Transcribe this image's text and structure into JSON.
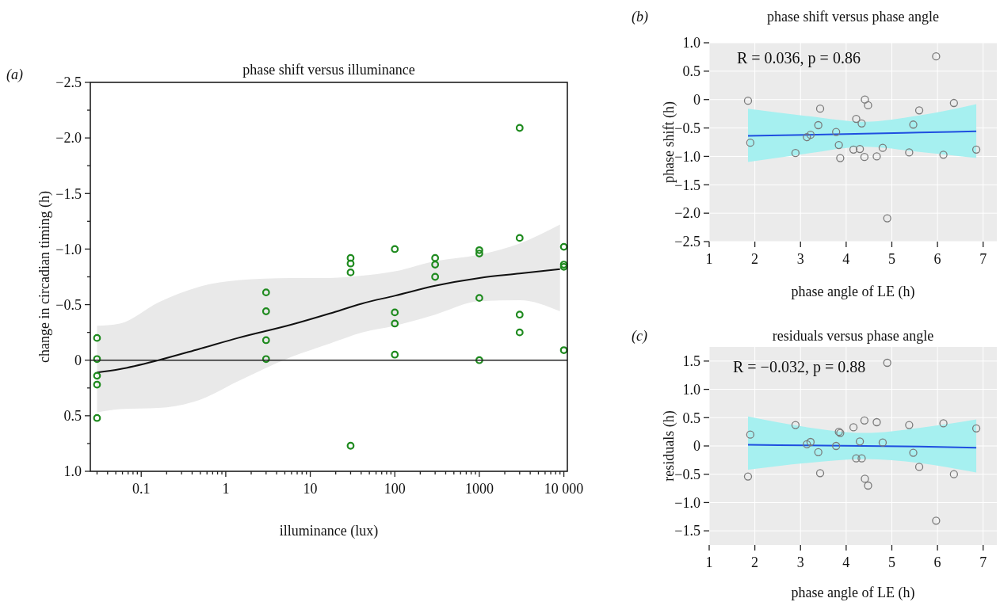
{
  "chart_data": [
    {
      "type": "scatter",
      "title": "phase shift versus illuminance",
      "xlabel": "illuminance (lux)",
      "ylabel": "change in circadian timing (h)",
      "annotations": [
        "(a)"
      ],
      "log": "x",
      "xlim": [
        0.025,
        11000
      ],
      "ylim": [
        1.0,
        -2.5
      ],
      "xticks": [
        {
          "value": 0.03,
          "label": null
        },
        {
          "value": 0.04,
          "label": null
        },
        {
          "value": 0.05,
          "label": null
        },
        {
          "value": 0.06,
          "label": null
        },
        {
          "value": 0.07,
          "label": null
        },
        {
          "value": 0.08,
          "label": null
        },
        {
          "value": 0.09,
          "label": null
        },
        0.1,
        {
          "value": 0.2,
          "label": null
        },
        {
          "value": 0.3,
          "label": null
        },
        {
          "value": 0.4,
          "label": null
        },
        {
          "value": 0.5,
          "label": null
        },
        {
          "value": 0.6,
          "label": null
        },
        {
          "value": 0.7,
          "label": null
        },
        {
          "value": 0.8,
          "label": null
        },
        {
          "value": 0.9,
          "label": null
        },
        1,
        {
          "value": 2,
          "label": null
        },
        {
          "value": 3,
          "label": null
        },
        {
          "value": 4,
          "label": null
        },
        {
          "value": 5,
          "label": null
        },
        {
          "value": 6,
          "label": null
        },
        {
          "value": 7,
          "label": null
        },
        {
          "value": 8,
          "label": null
        },
        {
          "value": 9,
          "label": null
        },
        10,
        {
          "value": 20,
          "label": null
        },
        {
          "value": 30,
          "label": null
        },
        {
          "value": 40,
          "label": null
        },
        {
          "value": 50,
          "label": null
        },
        {
          "value": 60,
          "label": null
        },
        {
          "value": 70,
          "label": null
        },
        {
          "value": 80,
          "label": null
        },
        {
          "value": 90,
          "label": null
        },
        100,
        {
          "value": 200,
          "label": null
        },
        {
          "value": 300,
          "label": null
        },
        {
          "value": 400,
          "label": null
        },
        {
          "value": 500,
          "label": null
        },
        {
          "value": 600,
          "label": null
        },
        {
          "value": 700,
          "label": null
        },
        {
          "value": 800,
          "label": null
        },
        {
          "value": 900,
          "label": null
        },
        1000,
        {
          "value": 2000,
          "label": null
        },
        {
          "value": 3000,
          "label": null
        },
        {
          "value": 4000,
          "label": null
        },
        {
          "value": 5000,
          "label": null
        },
        {
          "value": 6000,
          "label": null
        },
        {
          "value": 7000,
          "label": null
        },
        {
          "value": 8000,
          "label": null
        },
        {
          "value": 9000,
          "label": null
        },
        {
          "value": 10000,
          "label": "10 000"
        }
      ],
      "yticks": [
        {
          "value": -2.5,
          "label": "−2.5"
        },
        {
          "value": -2.25,
          "label": null
        },
        {
          "value": -2.0,
          "label": "−2.0"
        },
        {
          "value": -1.75,
          "label": null
        },
        {
          "value": -1.5,
          "label": "−1.5"
        },
        {
          "value": -1.25,
          "label": null
        },
        {
          "value": -1.0,
          "label": "−1.0"
        },
        {
          "value": -0.75,
          "label": null
        },
        {
          "value": -0.5,
          "label": "−0.5"
        },
        {
          "value": -0.25,
          "label": null
        },
        0,
        {
          "value": 0.25,
          "label": null
        },
        0.5,
        {
          "value": 0.75,
          "label": null
        },
        {
          "value": 1.0,
          "label": "1.0"
        }
      ],
      "ref_lines": [
        {
          "axis": "y",
          "value": 0,
          "color": "#222222"
        }
      ],
      "series": [
        {
          "marker": "circle",
          "color": "#1e8a1e",
          "x": [
            0.03,
            0.03,
            0.03,
            0.03,
            0.03,
            3,
            3,
            3,
            3,
            30,
            30,
            30,
            30,
            100,
            100,
            100,
            100,
            300,
            300,
            300,
            1000,
            1000,
            1000,
            1000,
            3000,
            3000,
            3000,
            3000,
            10000,
            10000,
            10000,
            10000
          ],
          "values": [
            -0.2,
            -0.01,
            0.14,
            0.22,
            0.52,
            -0.61,
            -0.44,
            -0.18,
            -0.01,
            -0.92,
            -0.87,
            -0.79,
            0.77,
            -1.0,
            -0.43,
            -0.33,
            -0.05,
            -0.92,
            -0.86,
            -0.75,
            -0.99,
            -0.96,
            -0.56,
            0,
            -2.09,
            -1.1,
            -0.41,
            -0.25,
            -1.02,
            -0.86,
            -0.84,
            -0.09
          ]
        },
        {
          "type": "line",
          "color": "#111111",
          "x": [
            0.03,
            0.056,
            0.16,
            0.48,
            1.4,
            6,
            17,
            41,
            100,
            300,
            1000,
            3000,
            9000
          ],
          "values": [
            0.11,
            0.08,
            0,
            -0.1,
            -0.2,
            -0.32,
            -0.42,
            -0.51,
            -0.58,
            -0.67,
            -0.74,
            -0.78,
            -0.82
          ],
          "lower": [
            -0.31,
            -0.33,
            -0.52,
            -0.66,
            -0.72,
            -0.74,
            -0.74,
            -0.76,
            -0.8,
            -0.89,
            -0.95,
            -1.05,
            -1.22
          ],
          "upper": [
            0.47,
            0.44,
            0.43,
            0.36,
            0.19,
            -0.03,
            -0.15,
            -0.25,
            -0.31,
            -0.41,
            -0.53,
            -0.54,
            -0.44
          ]
        }
      ]
    },
    {
      "type": "scatter",
      "title": "phase shift versus phase angle",
      "xlabel": "phase angle of LE (h)",
      "ylabel": "phase shift (h)",
      "annotations": [
        "(b)",
        "R = 0.036, p = 0.86"
      ],
      "grid": true,
      "xlim": [
        1,
        7.3
      ],
      "ylim": [
        -2.5,
        1.0
      ],
      "xticks": [
        1,
        2,
        3,
        4,
        5,
        6,
        7
      ],
      "yticks": [
        {
          "value": -2.5,
          "label": "−2.5"
        },
        {
          "value": -2.0,
          "label": "−2.0"
        },
        {
          "value": -1.5,
          "label": "−1.5"
        },
        {
          "value": -1.0,
          "label": "−1.0"
        },
        {
          "value": -0.5,
          "label": "−0.5"
        },
        0,
        0.5,
        {
          "value": 1.0,
          "label": "1.0"
        }
      ],
      "series": [
        {
          "marker": "circle",
          "color": "#7a7a7a",
          "x": [
            1.85,
            1.9,
            2.89,
            3.14,
            3.22,
            3.39,
            3.43,
            3.78,
            3.84,
            3.87,
            4.16,
            4.22,
            4.3,
            4.34,
            4.4,
            4.41,
            4.48,
            4.67,
            4.8,
            4.9,
            5.38,
            5.47,
            5.6,
            5.97,
            6.13,
            6.36,
            6.85
          ],
          "values": [
            -0.02,
            -0.76,
            -0.94,
            -0.66,
            -0.62,
            -0.45,
            -0.16,
            -0.57,
            -0.8,
            -1.03,
            -0.88,
            -0.34,
            -0.87,
            -0.42,
            -1.01,
            0,
            -0.1,
            -1.0,
            -0.85,
            -2.09,
            -0.93,
            -0.44,
            -0.19,
            0.76,
            -0.97,
            -0.06,
            -0.88
          ]
        },
        {
          "type": "line",
          "color": "#1f4fe0",
          "x": [
            1.85,
            3.15,
            4.4,
            5.6,
            6.85
          ],
          "values": [
            -0.64,
            -0.62,
            -0.6,
            -0.58,
            -0.56
          ],
          "lower": [
            -1.1,
            -0.95,
            -0.83,
            -0.92,
            -1.03
          ],
          "upper": [
            -0.16,
            -0.29,
            -0.39,
            -0.28,
            -0.08
          ]
        }
      ]
    },
    {
      "type": "scatter",
      "title": "residuals versus phase angle",
      "xlabel": "phase angle of LE (h)",
      "ylabel": "residuals (h)",
      "annotations": [
        "(c)",
        "R = −0.032, p = 0.88"
      ],
      "grid": true,
      "xlim": [
        1,
        7.3
      ],
      "ylim": [
        -1.75,
        1.75
      ],
      "xticks": [
        1,
        2,
        3,
        4,
        5,
        6,
        7
      ],
      "yticks": [
        {
          "value": -1.5,
          "label": "−1.5"
        },
        {
          "value": -1.0,
          "label": "−1.0"
        },
        {
          "value": -0.5,
          "label": "−0.5"
        },
        0,
        0.5,
        {
          "value": 1.0,
          "label": "1.0"
        },
        1.5
      ],
      "series": [
        {
          "marker": "circle",
          "color": "#7a7a7a",
          "x": [
            1.85,
            1.9,
            2.89,
            3.14,
            3.22,
            3.39,
            3.43,
            3.78,
            3.84,
            3.87,
            4.16,
            4.22,
            4.3,
            4.34,
            4.4,
            4.41,
            4.48,
            4.67,
            4.8,
            4.9,
            5.38,
            5.47,
            5.6,
            5.97,
            6.13,
            6.36,
            6.85
          ],
          "values": [
            -0.54,
            0.2,
            0.37,
            0.03,
            0.07,
            -0.11,
            -0.48,
            0,
            0.25,
            0.23,
            0.33,
            -0.22,
            0.08,
            -0.22,
            0.45,
            -0.58,
            -0.7,
            0.42,
            0.06,
            1.47,
            0.37,
            -0.12,
            -0.37,
            -1.32,
            0.4,
            -0.5,
            0.31
          ]
        },
        {
          "type": "line",
          "color": "#1f4fe0",
          "x": [
            1.85,
            3.15,
            4.4,
            5.6,
            6.85
          ],
          "values": [
            0.02,
            0.01,
            0,
            -0.01,
            -0.03
          ],
          "lower": [
            -0.42,
            -0.3,
            -0.23,
            -0.3,
            -0.47
          ],
          "upper": [
            0.52,
            0.33,
            0.23,
            0.32,
            0.47
          ]
        }
      ]
    }
  ]
}
